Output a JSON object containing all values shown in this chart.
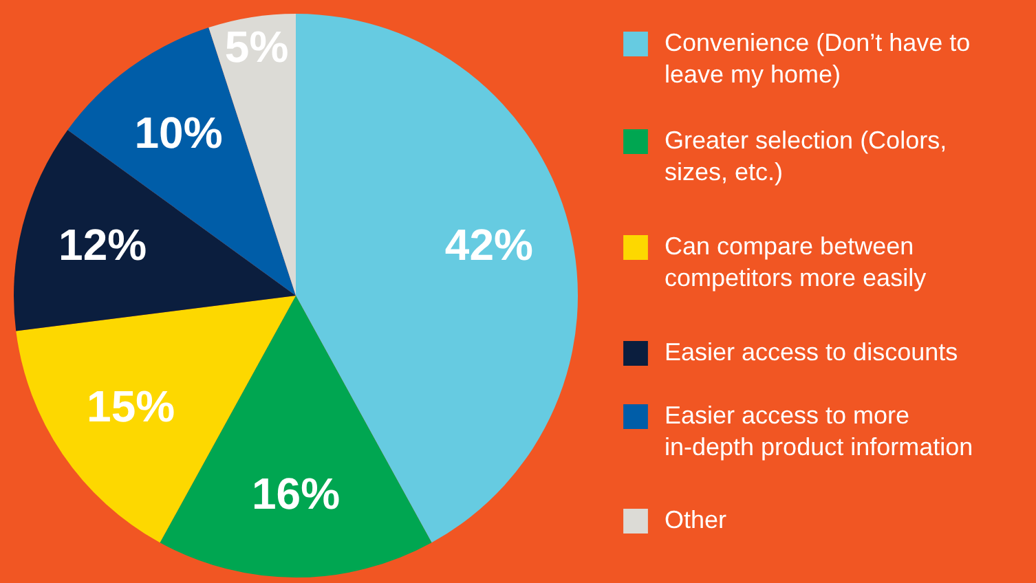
{
  "chart_data": {
    "type": "pie",
    "categories": [
      "Convenience (Don’t have to leave my home)",
      "Greater selection (Colors, sizes, etc.)",
      "Can compare between competitors more easily",
      "Easier access to discounts",
      "Easier access to more in-depth product information",
      "Other"
    ],
    "values": [
      42,
      16,
      15,
      12,
      10,
      5
    ],
    "colors": [
      "#66cbe1",
      "#00a651",
      "#fdd800",
      "#0b1e3e",
      "#005da8",
      "#dcdbd6"
    ],
    "value_labels": [
      "42%",
      "16%",
      "15%",
      "12%",
      "10%",
      "5%"
    ],
    "legend": "right"
  }
}
